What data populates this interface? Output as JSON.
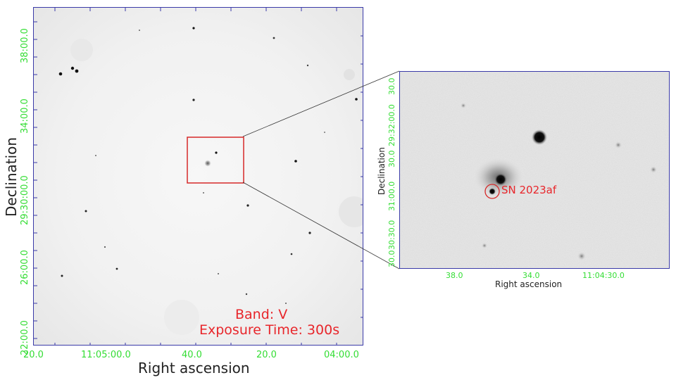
{
  "main_panel": {
    "xlabel": "Right ascension",
    "ylabel": "Declination",
    "x_ticks": [
      "20.0",
      "11:05:00.0",
      "40.0",
      "20.0",
      "04:00.0"
    ],
    "y_ticks": [
      "38:00.0",
      "34:00.0",
      "29:30:00.0",
      "26:00.0",
      "22:00.0"
    ],
    "band_label": "Band: V",
    "exposure_label": "Exposure Time: 300s"
  },
  "zoom_panel": {
    "xlabel": "Right ascension",
    "ylabel": "Declination",
    "x_ticks": [
      "38.0",
      "34.0",
      "11:04:30.0"
    ],
    "y_ticks": [
      "30.0",
      "29:32:00.0",
      "30.0",
      "31:00.0",
      "30:30.0",
      "30.0"
    ],
    "sn_label": "SN 2023af"
  },
  "colors": {
    "tick_text": "#33dd33",
    "annotation": "#e8262b",
    "frame": "#3a3aa8"
  }
}
